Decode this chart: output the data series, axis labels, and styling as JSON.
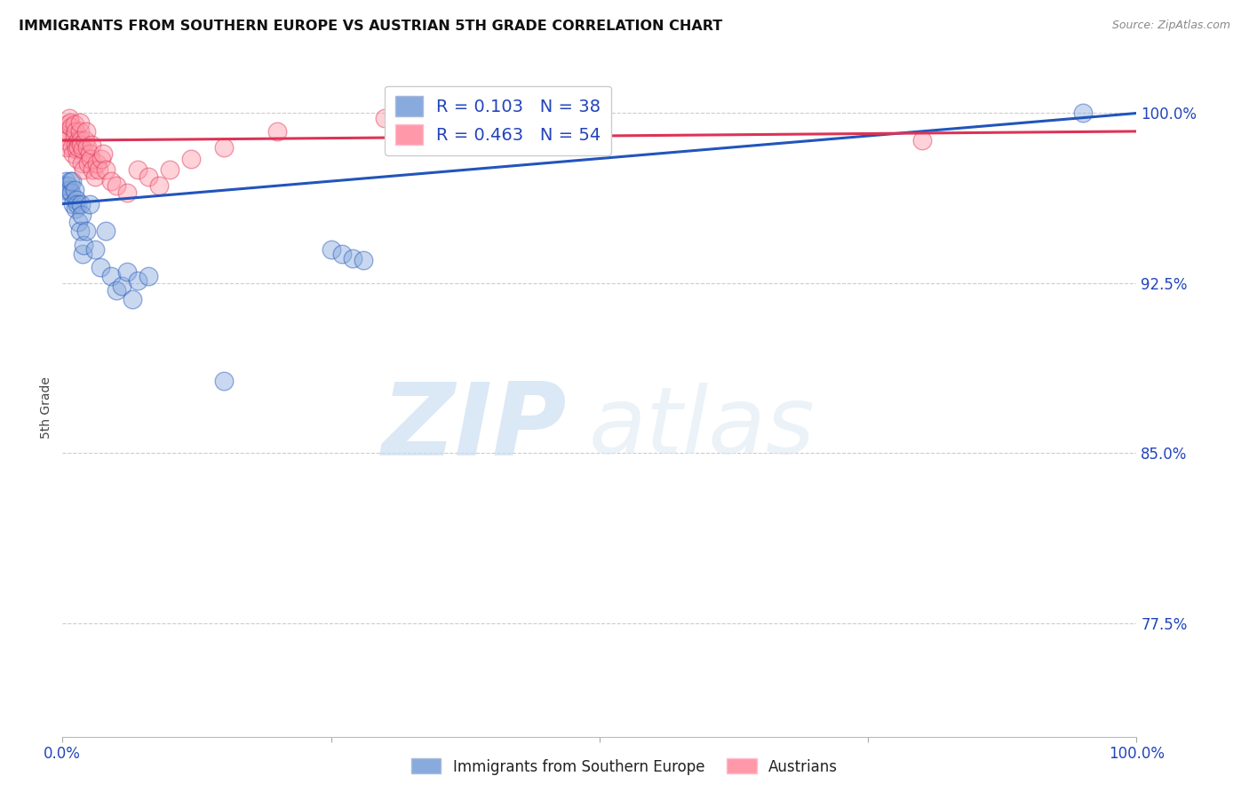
{
  "title": "IMMIGRANTS FROM SOUTHERN EUROPE VS AUSTRIAN 5TH GRADE CORRELATION CHART",
  "source": "Source: ZipAtlas.com",
  "ylabel": "5th Grade",
  "blue_R": 0.103,
  "blue_N": 38,
  "pink_R": 0.463,
  "pink_N": 54,
  "y_ticks_pct": [
    77.5,
    85.0,
    92.5,
    100.0
  ],
  "y_tick_labels": [
    "77.5%",
    "85.0%",
    "92.5%",
    "100.0%"
  ],
  "xlim": [
    0.0,
    1.0
  ],
  "ylim": [
    0.725,
    1.015
  ],
  "blue_color": "#88AADD",
  "pink_color": "#FF99AA",
  "blue_line_color": "#2255BB",
  "pink_line_color": "#DD3355",
  "legend_label_blue": "Immigrants from Southern Europe",
  "legend_label_pink": "Austrians",
  "blue_x": [
    0.001,
    0.002,
    0.003,
    0.004,
    0.005,
    0.006,
    0.007,
    0.008,
    0.009,
    0.01,
    0.011,
    0.012,
    0.013,
    0.014,
    0.015,
    0.016,
    0.017,
    0.018,
    0.019,
    0.02,
    0.022,
    0.025,
    0.03,
    0.035,
    0.04,
    0.045,
    0.05,
    0.055,
    0.06,
    0.065,
    0.07,
    0.08,
    0.15,
    0.25,
    0.26,
    0.27,
    0.28,
    0.95
  ],
  "blue_y": [
    0.968,
    0.966,
    0.97,
    0.964,
    0.968,
    0.966,
    0.97,
    0.965,
    0.97,
    0.96,
    0.966,
    0.958,
    0.962,
    0.96,
    0.952,
    0.948,
    0.96,
    0.955,
    0.938,
    0.942,
    0.948,
    0.96,
    0.94,
    0.932,
    0.948,
    0.928,
    0.922,
    0.924,
    0.93,
    0.918,
    0.926,
    0.928,
    0.882,
    0.94,
    0.938,
    0.936,
    0.935,
    1.0
  ],
  "pink_x": [
    0.001,
    0.002,
    0.003,
    0.004,
    0.005,
    0.006,
    0.007,
    0.008,
    0.009,
    0.01,
    0.011,
    0.011,
    0.012,
    0.012,
    0.013,
    0.014,
    0.015,
    0.015,
    0.016,
    0.016,
    0.017,
    0.017,
    0.018,
    0.019,
    0.02,
    0.021,
    0.022,
    0.023,
    0.024,
    0.025,
    0.026,
    0.027,
    0.028,
    0.03,
    0.032,
    0.034,
    0.036,
    0.038,
    0.04,
    0.045,
    0.05,
    0.06,
    0.07,
    0.08,
    0.09,
    0.1,
    0.12,
    0.15,
    0.2,
    0.3,
    0.35,
    0.4,
    0.5,
    0.8
  ],
  "pink_y": [
    0.99,
    0.992,
    0.988,
    0.985,
    0.995,
    0.998,
    0.996,
    0.994,
    0.985,
    0.982,
    0.99,
    0.995,
    0.992,
    0.986,
    0.984,
    0.98,
    0.988,
    0.985,
    0.992,
    0.996,
    0.988,
    0.986,
    0.978,
    0.984,
    0.975,
    0.988,
    0.992,
    0.985,
    0.978,
    0.982,
    0.98,
    0.986,
    0.975,
    0.972,
    0.978,
    0.975,
    0.98,
    0.982,
    0.975,
    0.97,
    0.968,
    0.965,
    0.975,
    0.972,
    0.968,
    0.975,
    0.98,
    0.985,
    0.992,
    0.998,
    0.995,
    0.992,
    0.99,
    0.988
  ]
}
